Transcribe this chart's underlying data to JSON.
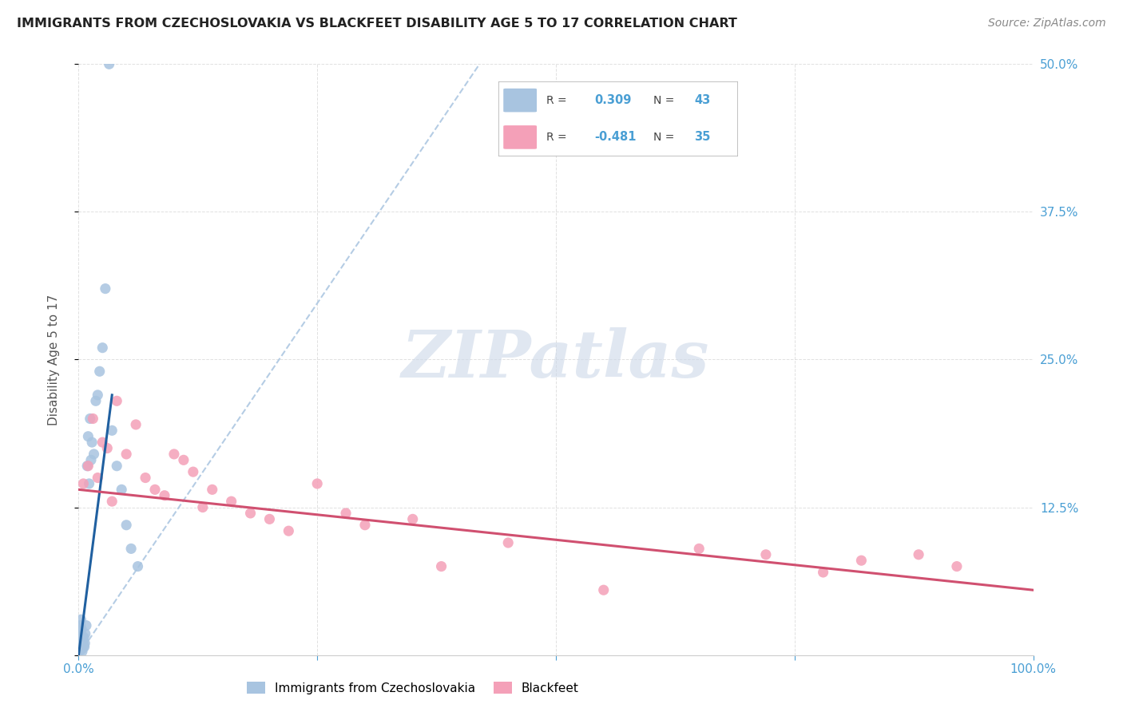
{
  "title": "IMMIGRANTS FROM CZECHOSLOVAKIA VS BLACKFEET DISABILITY AGE 5 TO 17 CORRELATION CHART",
  "source": "Source: ZipAtlas.com",
  "ylabel": "Disability Age 5 to 17",
  "xlim": [
    0,
    100
  ],
  "ylim": [
    0,
    50
  ],
  "blue_R": 0.309,
  "blue_N": 43,
  "pink_R": -0.481,
  "pink_N": 35,
  "blue_color": "#a8c4e0",
  "blue_line_solid_color": "#2060a0",
  "blue_line_dashed_color": "#a8c4e0",
  "pink_color": "#f4a0b8",
  "pink_line_color": "#d05070",
  "background_color": "#ffffff",
  "grid_color": "#cccccc",
  "title_color": "#222222",
  "axis_label_color": "#555555",
  "tick_color": "#4a9fd4",
  "legend_value_color": "#4a9fd4",
  "watermark_color": "#ccd8e8",
  "blue_x": [
    0.05,
    0.08,
    0.1,
    0.12,
    0.15,
    0.18,
    0.2,
    0.22,
    0.25,
    0.28,
    0.3,
    0.33,
    0.35,
    0.38,
    0.4,
    0.42,
    0.45,
    0.48,
    0.5,
    0.55,
    0.6,
    0.65,
    0.7,
    0.8,
    0.9,
    1.0,
    1.1,
    1.2,
    1.3,
    1.4,
    1.6,
    1.8,
    2.0,
    2.2,
    2.5,
    2.8,
    3.2,
    3.5,
    4.0,
    4.5,
    5.0,
    5.5,
    6.2
  ],
  "blue_y": [
    0.3,
    0.5,
    0.8,
    1.0,
    1.5,
    2.0,
    2.5,
    1.2,
    3.0,
    1.8,
    2.2,
    0.5,
    1.0,
    0.3,
    1.5,
    0.8,
    0.6,
    1.2,
    0.9,
    1.5,
    0.7,
    1.0,
    1.8,
    2.5,
    16.0,
    18.5,
    14.5,
    20.0,
    16.5,
    18.0,
    17.0,
    21.5,
    22.0,
    24.0,
    26.0,
    31.0,
    50.0,
    19.0,
    16.0,
    14.0,
    11.0,
    9.0,
    7.5
  ],
  "pink_x": [
    0.5,
    1.0,
    1.5,
    2.0,
    2.5,
    3.0,
    3.5,
    4.0,
    5.0,
    6.0,
    7.0,
    8.0,
    9.0,
    10.0,
    11.0,
    12.0,
    13.0,
    14.0,
    16.0,
    18.0,
    20.0,
    22.0,
    25.0,
    28.0,
    30.0,
    35.0,
    38.0,
    45.0,
    55.0,
    65.0,
    72.0,
    78.0,
    82.0,
    88.0,
    92.0
  ],
  "pink_y": [
    14.5,
    16.0,
    20.0,
    15.0,
    18.0,
    17.5,
    13.0,
    21.5,
    17.0,
    19.5,
    15.0,
    14.0,
    13.5,
    17.0,
    16.5,
    15.5,
    12.5,
    14.0,
    13.0,
    12.0,
    11.5,
    10.5,
    14.5,
    12.0,
    11.0,
    11.5,
    7.5,
    9.5,
    5.5,
    9.0,
    8.5,
    7.0,
    8.0,
    8.5,
    7.5
  ],
  "blue_line_x0": 0.0,
  "blue_line_y0": 0.0,
  "blue_line_x1": 3.5,
  "blue_line_y1": 22.0,
  "blue_dash_x0": 0.0,
  "blue_dash_y0": 0.0,
  "blue_dash_x1": 42.0,
  "blue_dash_y1": 50.0,
  "pink_line_x0": 0.0,
  "pink_line_y0": 14.0,
  "pink_line_x1": 100.0,
  "pink_line_y1": 5.5
}
